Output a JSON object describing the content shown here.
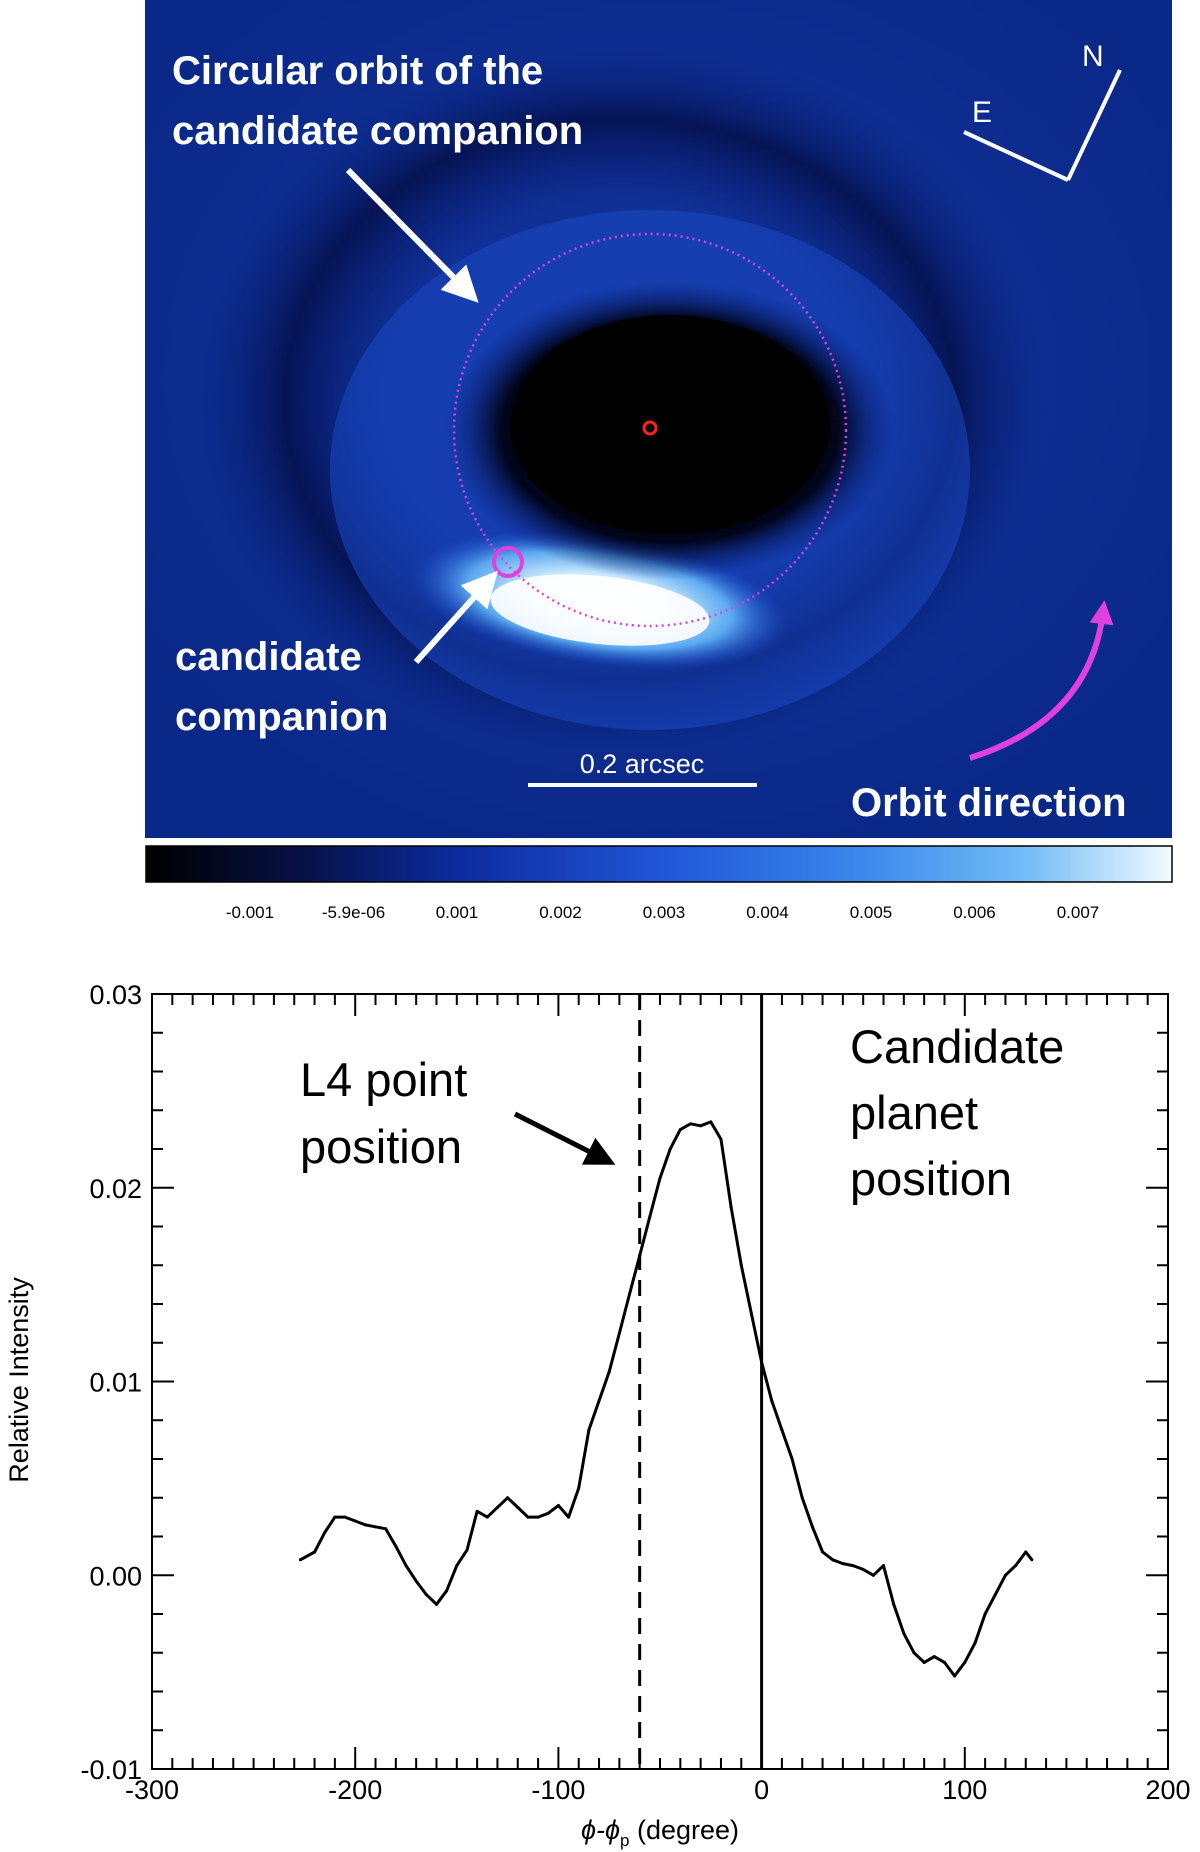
{
  "image_panel": {
    "orbit_label_line1": "Circular orbit of the",
    "orbit_label_line2": "candidate companion",
    "companion_label_line1": "candidate",
    "companion_label_line2": "companion",
    "scalebar_label": "0.2 arcsec",
    "orbit_direction_label": "Orbit direction",
    "compass_north": "N",
    "compass_east": "E",
    "background_color": "#0a2a9a",
    "orbit_color": "#e040e0",
    "star_marker_color": "#ff2020",
    "colorbar": {
      "ticks": [
        "-0.001",
        "-5.9e-06",
        "0.001",
        "0.002",
        "0.003",
        "0.004",
        "0.005",
        "0.006",
        "0.007"
      ],
      "colors": [
        "#000000",
        "#0a1a6a",
        "#1e3fc8",
        "#3a7ae8",
        "#6ab4f4",
        "#e6f6ff"
      ]
    }
  },
  "chart_data": {
    "type": "line",
    "xlabel": "ϕ-ϕ",
    "xlabel_sub": "p",
    "xlabel_unit": "(degree)",
    "ylabel": "Relative Intensity",
    "xlim": [
      -300,
      200
    ],
    "ylim": [
      -0.01,
      0.03
    ],
    "x_ticks": [
      -300,
      -200,
      -100,
      0,
      100,
      200
    ],
    "x_tick_labels": [
      "-300",
      "-200",
      "-100",
      "0",
      "100",
      "200"
    ],
    "y_ticks": [
      -0.01,
      0.0,
      0.01,
      0.02,
      0.03
    ],
    "y_tick_labels": [
      "-0.01",
      "0.00",
      "0.01",
      "0.02",
      "0.03"
    ],
    "grid": false,
    "annotations": {
      "l4_line1": "L4 point",
      "l4_line2": "position",
      "planet_line1": "Candidate",
      "planet_line2": "planet",
      "planet_line3": "position"
    },
    "vlines": [
      {
        "x": -60,
        "style": "dashed"
      },
      {
        "x": 0,
        "style": "solid"
      }
    ],
    "series": [
      {
        "x": [
          -227,
          -220,
          -215,
          -210,
          -205,
          -200,
          -195,
          -190,
          -185,
          -180,
          -175,
          -170,
          -165,
          -160,
          -155,
          -150,
          -145,
          -140,
          -135,
          -130,
          -125,
          -120,
          -115,
          -110,
          -105,
          -100,
          -95,
          -90,
          -85,
          -80,
          -75,
          -70,
          -65,
          -60,
          -55,
          -50,
          -45,
          -40,
          -35,
          -30,
          -25,
          -20,
          -15,
          -10,
          -5,
          0,
          5,
          10,
          15,
          20,
          25,
          30,
          35,
          40,
          45,
          50,
          55,
          60,
          65,
          70,
          75,
          80,
          85,
          90,
          95,
          100,
          105,
          110,
          115,
          120,
          125,
          130,
          133
        ],
        "values": [
          0.0008,
          0.0012,
          0.0022,
          0.003,
          0.003,
          0.0028,
          0.0026,
          0.0025,
          0.0024,
          0.0015,
          0.0005,
          -0.0003,
          -0.001,
          -0.0015,
          -0.0008,
          0.0005,
          0.0013,
          0.0033,
          0.003,
          0.0035,
          0.004,
          0.0035,
          0.003,
          0.003,
          0.0032,
          0.0036,
          0.003,
          0.0045,
          0.0075,
          0.009,
          0.0105,
          0.0125,
          0.0145,
          0.0165,
          0.0185,
          0.0205,
          0.022,
          0.023,
          0.0233,
          0.0232,
          0.0234,
          0.0225,
          0.019,
          0.016,
          0.0135,
          0.011,
          0.009,
          0.0075,
          0.006,
          0.004,
          0.0025,
          0.0012,
          0.0008,
          0.0006,
          0.0005,
          0.0003,
          0.0,
          0.0005,
          -0.0015,
          -0.003,
          -0.004,
          -0.0045,
          -0.0042,
          -0.0045,
          -0.0052,
          -0.0045,
          -0.0035,
          -0.002,
          -0.001,
          0.0,
          0.0005,
          0.0012,
          0.0008
        ]
      }
    ]
  }
}
